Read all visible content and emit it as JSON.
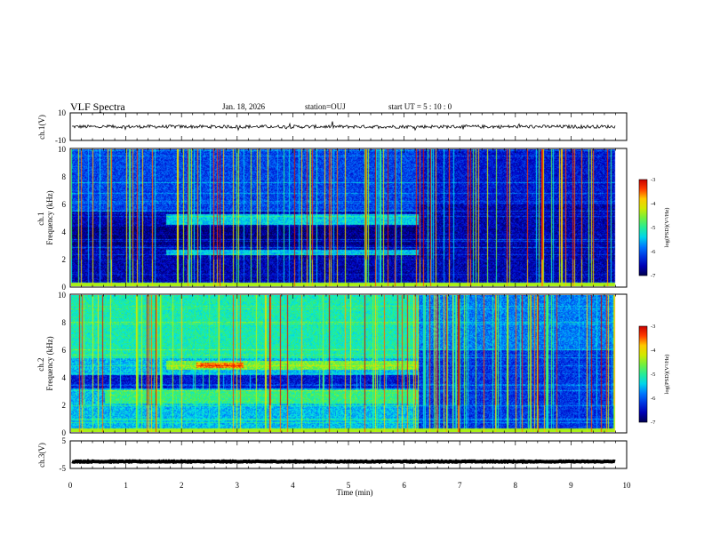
{
  "header": {
    "title": "VLF Spectra",
    "date": "Jan. 18, 2026",
    "station": "station=OUJ",
    "start_label": "start  UT =  5 : 10 : 0"
  },
  "chart_data": [
    {
      "type": "line",
      "name": "waveform-ch1",
      "ylabel": "ch.1(V)",
      "ylim": [
        -10,
        10
      ],
      "yticks": [
        "10",
        "-10"
      ],
      "baseline": 0,
      "noise_amplitude": 1.2
    },
    {
      "type": "heatmap",
      "name": "spectrogram-ch1",
      "ylabel": "ch.1\nFrequency (kHz)",
      "ylim": [
        0,
        10
      ],
      "yticks": [
        "0",
        "2",
        "4",
        "6",
        "8",
        "10"
      ],
      "xlim": [
        0,
        10
      ],
      "data_end_min": 9.8,
      "change_min": 6.25,
      "bands_before": [
        {
          "f0": 4.5,
          "f1": 5.3,
          "t0": 1.7,
          "t1": 6.25,
          "level": -5.4
        },
        {
          "f0": 2.3,
          "f1": 2.7,
          "t0": 1.7,
          "t1": 6.25,
          "level": -5.5
        }
      ],
      "colorbar": {
        "label": "log(PSD)(V²/Hz)",
        "ticks": [
          "-3",
          "-4",
          "-5",
          "-6",
          "-7"
        ],
        "range": [
          -7,
          -3
        ]
      }
    },
    {
      "type": "heatmap",
      "name": "spectrogram-ch2",
      "ylabel": "ch.2\nFrequency (kHz)",
      "ylim": [
        0,
        10
      ],
      "yticks": [
        "0",
        "2",
        "4",
        "6",
        "8",
        "10"
      ],
      "xlim": [
        0,
        10
      ],
      "data_end_min": 9.8,
      "change_min": 6.25,
      "bands_before": [
        {
          "f0": 4.6,
          "f1": 5.2,
          "t0": 1.7,
          "t1": 6.25,
          "level": -4.6
        },
        {
          "f0": 4.7,
          "f1": 5.1,
          "t0": 2.25,
          "t1": 3.1,
          "level": -3.6
        },
        {
          "f0": 2.1,
          "f1": 3.1,
          "t0": 0.6,
          "t1": 6.25,
          "level": -4.9
        }
      ],
      "colorbar": {
        "label": "log(PSD)(V²/Hz)",
        "ticks": [
          "-3",
          "-4",
          "-5",
          "-6",
          "-7"
        ],
        "range": [
          -7,
          -3
        ]
      }
    },
    {
      "type": "line",
      "name": "waveform-ch3",
      "ylabel": "ch.3(V)",
      "ylim": [
        -5,
        5
      ],
      "yticks": [
        "5",
        "-5"
      ],
      "baseline": -2.5,
      "noise_amplitude": 0.15,
      "xlabel": "Time (min)",
      "xticks": [
        "0",
        "1",
        "2",
        "3",
        "4",
        "5",
        "6",
        "7",
        "8",
        "9",
        "10"
      ]
    }
  ]
}
